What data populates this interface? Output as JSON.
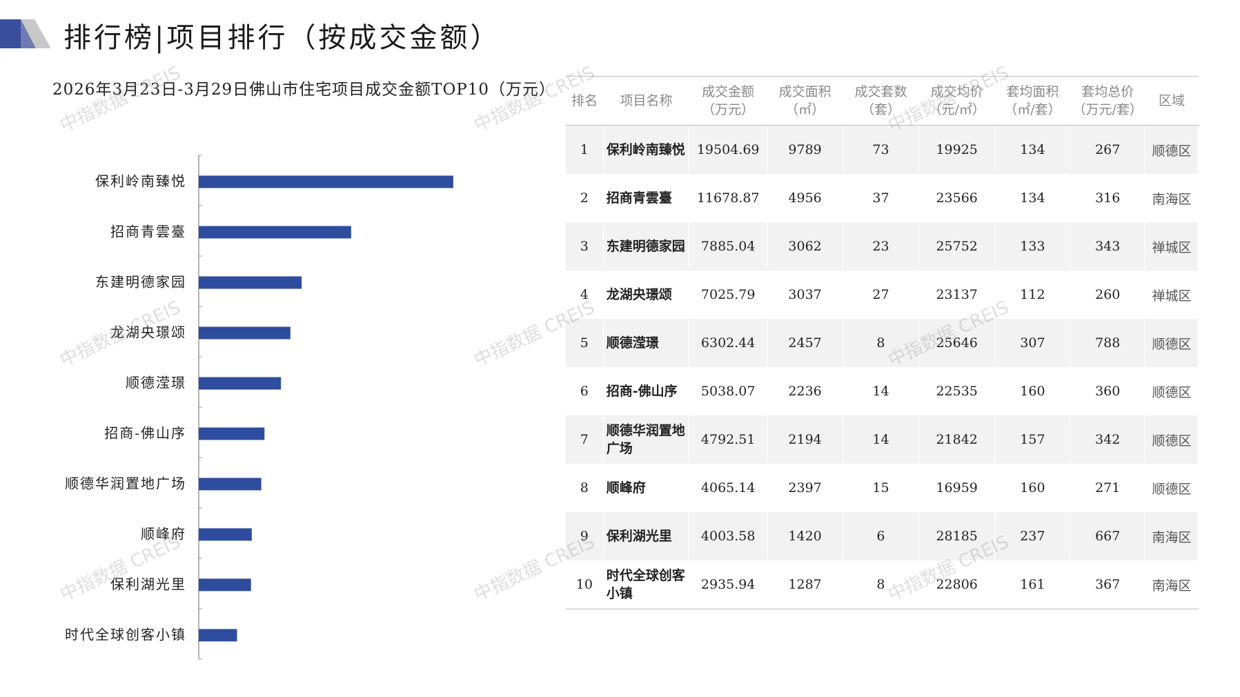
{
  "header": {
    "title": "排行榜|项目排行（按成交金额）"
  },
  "colors": {
    "bar": "#2e4d9e",
    "logo_dark": "#3a4e9e",
    "logo_light": "#c8c8c8"
  },
  "watermark": "中指数据 CREIS",
  "chart_data": {
    "type": "bar",
    "orientation": "horizontal",
    "title": "2026年3月23日-3月29日佛山市住宅项目成交金额TOP10（万元）",
    "categories": [
      "保利岭南臻悦",
      "招商青雲臺",
      "东建明德家园",
      "龙湖央璟颂",
      "顺德滢璟",
      "招商-佛山序",
      "顺德华润置地广场",
      "顺峰府",
      "保利湖光里",
      "时代全球创客小镇"
    ],
    "values": [
      19504.69,
      11678.87,
      7885.04,
      7025.79,
      6302.44,
      5038.07,
      4792.51,
      4065.14,
      4003.58,
      2935.94
    ],
    "xlim": [
      0,
      23000
    ],
    "grid": false,
    "legend": "none"
  },
  "table": {
    "headers": [
      "排名",
      "项目名称",
      "成交金额\n（万元）",
      "成交面积\n（㎡）",
      "成交套数\n（套）",
      "成交均价\n（元/㎡）",
      "套均面积\n（㎡/套）",
      "套均总价\n（万元/套）",
      "区域"
    ],
    "rows": [
      [
        "1",
        "保利岭南臻悦",
        "19504.69",
        "9789",
        "73",
        "19925",
        "134",
        "267",
        "顺德区"
      ],
      [
        "2",
        "招商青雲臺",
        "11678.87",
        "4956",
        "37",
        "23566",
        "134",
        "316",
        "南海区"
      ],
      [
        "3",
        "东建明德家园",
        "7885.04",
        "3062",
        "23",
        "25752",
        "133",
        "343",
        "禅城区"
      ],
      [
        "4",
        "龙湖央璟颂",
        "7025.79",
        "3037",
        "27",
        "23137",
        "112",
        "260",
        "禅城区"
      ],
      [
        "5",
        "顺德滢璟",
        "6302.44",
        "2457",
        "8",
        "25646",
        "307",
        "788",
        "顺德区"
      ],
      [
        "6",
        "招商-佛山序",
        "5038.07",
        "2236",
        "14",
        "22535",
        "160",
        "360",
        "顺德区"
      ],
      [
        "7",
        "顺德华润置地广场",
        "4792.51",
        "2194",
        "14",
        "21842",
        "157",
        "342",
        "顺德区"
      ],
      [
        "8",
        "顺峰府",
        "4065.14",
        "2397",
        "15",
        "16959",
        "160",
        "271",
        "顺德区"
      ],
      [
        "9",
        "保利湖光里",
        "4003.58",
        "1420",
        "6",
        "28185",
        "237",
        "667",
        "南海区"
      ],
      [
        "10",
        "时代全球创客小镇",
        "2935.94",
        "1287",
        "8",
        "22806",
        "161",
        "367",
        "南海区"
      ]
    ]
  }
}
